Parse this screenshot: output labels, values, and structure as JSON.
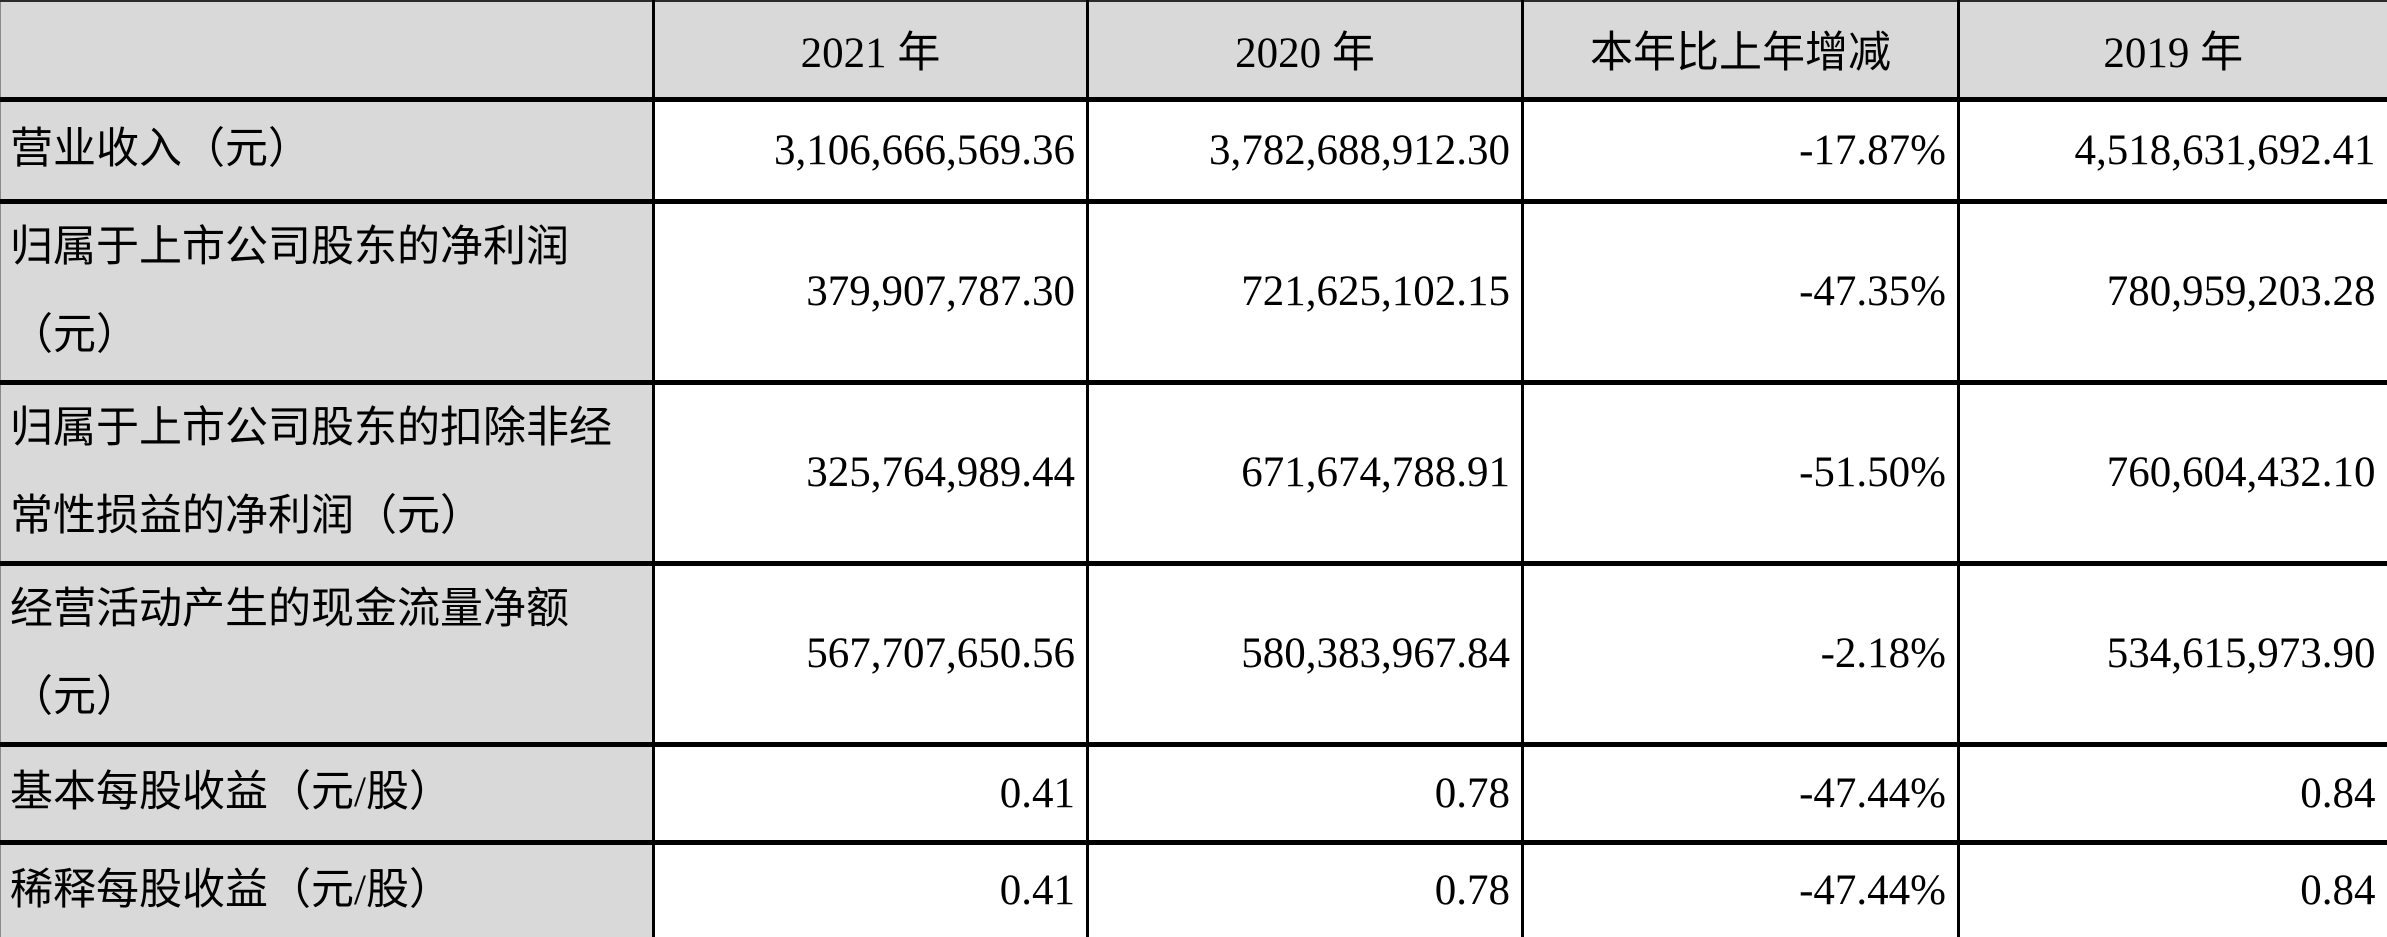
{
  "table": {
    "title_semantic": "annual-financial-summary",
    "columns": [
      {
        "label": ""
      },
      {
        "label": "2021 年"
      },
      {
        "label": "2020 年"
      },
      {
        "label": "本年比上年增减"
      },
      {
        "label": "2019 年"
      }
    ],
    "rows": [
      {
        "label": "营业收入（元）",
        "y2021": "3,106,666,569.36",
        "y2020": "3,782,688,912.30",
        "change": "-17.87%",
        "y2019": "4,518,631,692.41"
      },
      {
        "label": "归属于上市公司股东的净利润\n（元）",
        "y2021": "379,907,787.30",
        "y2020": "721,625,102.15",
        "change": "-47.35%",
        "y2019": "780,959,203.28"
      },
      {
        "label": "归属于上市公司股东的扣除非经\n常性损益的净利润（元）",
        "y2021": "325,764,989.44",
        "y2020": "671,674,788.91",
        "change": "-51.50%",
        "y2019": "760,604,432.10"
      },
      {
        "label": "经营活动产生的现金流量净额\n（元）",
        "y2021": "567,707,650.56",
        "y2020": "580,383,967.84",
        "change": "-2.18%",
        "y2019": "534,615,973.90"
      },
      {
        "label": "基本每股收益（元/股）",
        "y2021": "0.41",
        "y2020": "0.78",
        "change": "-47.44%",
        "y2019": "0.84"
      },
      {
        "label": "稀释每股收益（元/股）",
        "y2021": "0.41",
        "y2020": "0.78",
        "change": "-47.44%",
        "y2019": "0.84"
      }
    ]
  },
  "colors": {
    "header_bg": "#d9d9d9",
    "label_bg": "#d9d9d9",
    "value_bg": "#ffffff",
    "border": "#000000",
    "text": "#000000"
  }
}
